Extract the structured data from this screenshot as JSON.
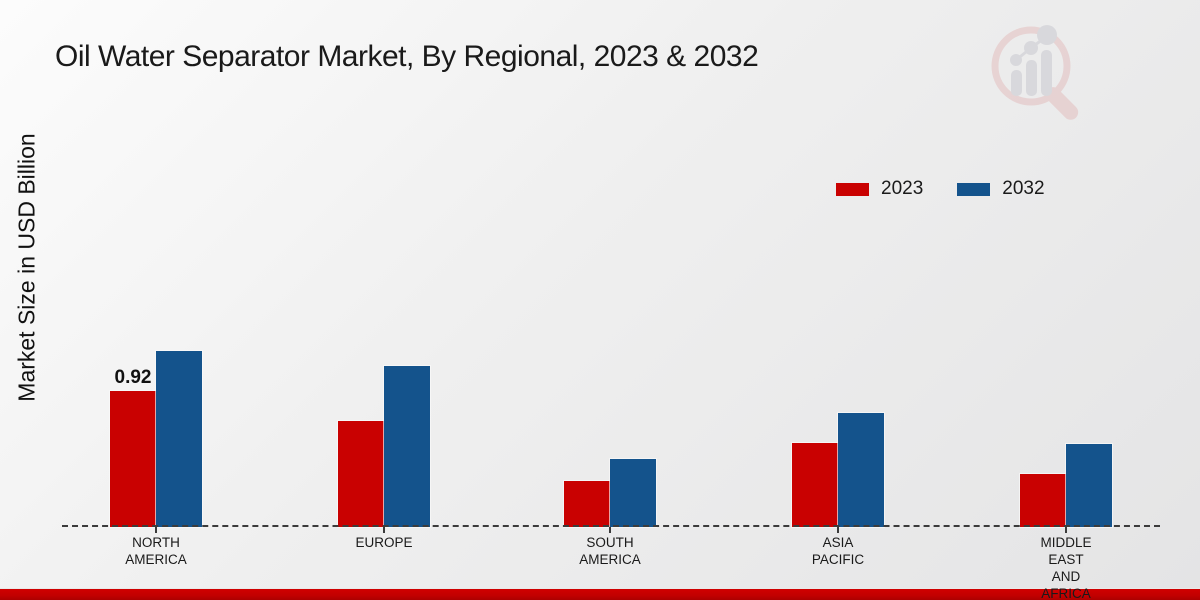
{
  "title": "Oil Water Separator Market, By Regional, 2023 & 2032",
  "y_axis_label": "Market Size in USD Billion",
  "legend": {
    "items": [
      {
        "label": "2023",
        "color": "#C90101"
      },
      {
        "label": "2032",
        "color": "#14538C"
      }
    ]
  },
  "colors": {
    "series_2023": "#C90101",
    "series_2032": "#14538C",
    "baseline": "#3b3b3b",
    "footer_red": "#C20000",
    "text": "#1a1a1a"
  },
  "watermark_icon": "magnifier-bar-chart-logo",
  "chart_data": {
    "type": "bar",
    "title": "Oil Water Separator Market, By Regional, 2023 & 2032",
    "xlabel": "",
    "ylabel": "Market Size in USD Billion",
    "categories": [
      "NORTH AMERICA",
      "EUROPE",
      "SOUTH AMERICA",
      "ASIA PACIFIC",
      "MIDDLE EAST AND AFRICA"
    ],
    "category_label_lines": [
      [
        "NORTH",
        "AMERICA"
      ],
      [
        "EUROPE"
      ],
      [
        "SOUTH",
        "AMERICA"
      ],
      [
        "ASIA",
        "PACIFIC"
      ],
      [
        "MIDDLE",
        "EAST",
        "AND",
        "AFRICA"
      ]
    ],
    "series": [
      {
        "name": "2023",
        "color": "#C90101",
        "values": [
          0.92,
          0.72,
          0.31,
          0.57,
          0.36
        ]
      },
      {
        "name": "2032",
        "color": "#14538C",
        "values": [
          1.19,
          1.09,
          0.46,
          0.77,
          0.56
        ]
      }
    ],
    "data_labels": [
      {
        "text": "0.92",
        "series_index": 0,
        "category_index": 0
      }
    ],
    "ylim": [
      0,
      1.3
    ],
    "grid": false,
    "axis_line": "dashed-zero-line",
    "legend_position": "top-right"
  }
}
